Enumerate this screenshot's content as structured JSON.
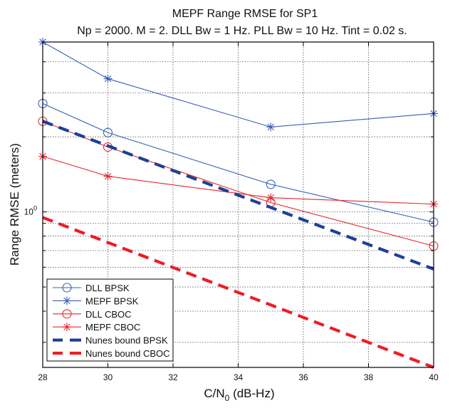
{
  "chart_data": {
    "type": "line",
    "title": "MEPF Range RMSE for SP1",
    "subtitle": "Np = 2000. M = 2. DLL Bw = 1 Hz. PLL Bw = 10 Hz. Tint = 0.02 s.",
    "xlabel_main": "C/N",
    "xlabel_sub": "0",
    "xlabel_tail": " (dB-Hz)",
    "ylabel": "Range RMSE (meters)",
    "yscale": "log",
    "xlim": [
      28,
      40
    ],
    "ylim": [
      0.238,
      4.8
    ],
    "x_ticks": [
      28,
      30,
      32,
      34,
      36,
      38,
      40
    ],
    "y_major_ticks": [
      {
        "value": 1,
        "base": "10",
        "exp": "0"
      }
    ],
    "y_minor_gridlines": [
      0.3,
      0.4,
      0.5,
      0.6,
      0.7,
      0.8,
      0.9,
      2,
      3,
      4
    ],
    "grid": true,
    "legend_position": "bottom-left",
    "series": [
      {
        "name": "DLL BPSK",
        "color": "#3a5fb5",
        "style": "solid",
        "marker": "circle",
        "x": [
          28,
          30,
          35,
          40
        ],
        "y": [
          2.72,
          2.08,
          1.29,
          0.91
        ]
      },
      {
        "name": "MEPF BPSK",
        "color": "#3a5fb5",
        "style": "solid",
        "marker": "star",
        "x": [
          28,
          30,
          35,
          40
        ],
        "y": [
          4.8,
          3.42,
          2.19,
          2.48
        ]
      },
      {
        "name": "DLL CBOC",
        "color": "#e8262e",
        "style": "solid",
        "marker": "circle",
        "x": [
          28,
          30,
          35,
          40
        ],
        "y": [
          2.31,
          1.82,
          1.09,
          0.73
        ]
      },
      {
        "name": "MEPF CBOC",
        "color": "#e8262e",
        "style": "solid",
        "marker": "star",
        "x": [
          28,
          30,
          35,
          40
        ],
        "y": [
          1.67,
          1.39,
          1.14,
          1.075
        ]
      },
      {
        "name": "Nunes bound BPSK",
        "color": "#1f3f96",
        "style": "dashed",
        "marker": "none",
        "x": [
          28,
          40
        ],
        "y": [
          2.31,
          0.59
        ]
      },
      {
        "name": "Nunes bound CBOC",
        "color": "#ee1c25",
        "style": "dashed",
        "marker": "none",
        "x": [
          28,
          40
        ],
        "y": [
          0.95,
          0.238
        ]
      }
    ]
  }
}
